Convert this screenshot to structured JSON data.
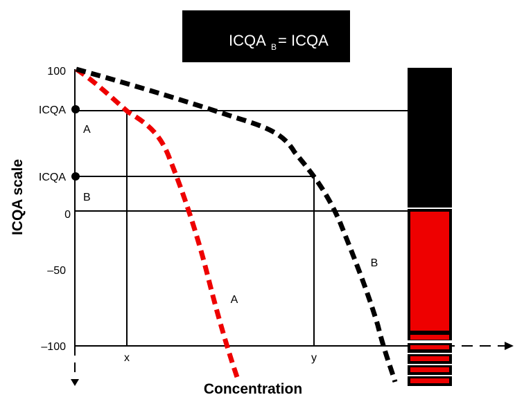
{
  "title": {
    "main": "ICQA",
    "subscript": "B",
    "rest": "= ICQA"
  },
  "y_axis": {
    "title": "ICQA scale",
    "top": "100",
    "levels": [
      {
        "label": "ICQA",
        "sub": "A"
      },
      {
        "label": "ICQA",
        "sub": "B"
      }
    ],
    "ticks": [
      "0",
      "–50",
      "–100"
    ]
  },
  "x_axis": {
    "title": "Concentration",
    "marks": [
      "x",
      "y"
    ]
  },
  "curves": [
    {
      "label": "A"
    },
    {
      "label": "B"
    }
  ]
}
